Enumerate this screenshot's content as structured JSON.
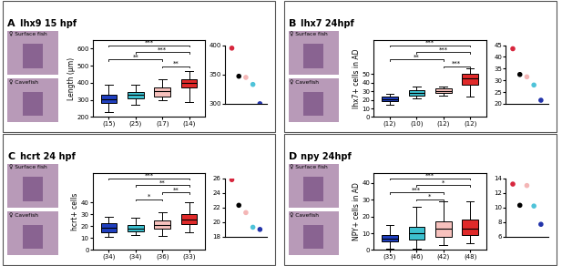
{
  "chart_data": [
    {
      "type": "box",
      "panel_label": "A",
      "title": "lhx9 15 hpf",
      "image_labels": [
        "♀ Surface fish",
        "♀ Cavefish"
      ],
      "ylabel": "Length (µm)",
      "categories": [
        "(15)",
        "(25)",
        "(17)",
        "(14)"
      ],
      "colors": [
        "#1f3fbf",
        "#3cc0cf",
        "#f7c1bd",
        "#e02a2a"
      ],
      "boxes": [
        {
          "whislo": 230,
          "q1": 280,
          "med": 305,
          "q3": 330,
          "whishi": 390
        },
        {
          "whislo": 270,
          "q1": 310,
          "med": 330,
          "q3": 345,
          "whishi": 390
        },
        {
          "whislo": 300,
          "q1": 320,
          "med": 350,
          "q3": 370,
          "whishi": 420
        },
        {
          "whislo": 290,
          "q1": 370,
          "med": 400,
          "q3": 420,
          "whishi": 470
        }
      ],
      "ylim": [
        200,
        650
      ],
      "yticks": [
        200,
        300,
        400,
        500,
        600
      ],
      "significance": [
        {
          "from": 0,
          "to": 3,
          "label": "***"
        },
        {
          "from": 0,
          "to": 2,
          "label": "**"
        },
        {
          "from": 1,
          "to": 3,
          "label": "***"
        },
        {
          "from": 2,
          "to": 3,
          "label": "**"
        }
      ],
      "inset": {
        "type": "scatter",
        "values": [
          395,
          347,
          345,
          333,
          300
        ],
        "colors": [
          "#d7263d",
          "#000000",
          "#f4b6b6",
          "#4fc3d9",
          "#2233aa"
        ],
        "ylim": [
          300,
          400
        ],
        "yticks": [
          300,
          350,
          400
        ]
      }
    },
    {
      "type": "box",
      "panel_label": "B",
      "title": "lhx7 24hpf",
      "image_labels": [
        "♀ Surface fish",
        "♀ Cavefish"
      ],
      "ylabel": "lhx7+ cells in AD",
      "categories": [
        "(12)",
        "(10)",
        "(12)",
        "(12)"
      ],
      "colors": [
        "#1f3fbf",
        "#3cc0cf",
        "#f7c1bd",
        "#e02a2a"
      ],
      "boxes": [
        {
          "whislo": 14,
          "q1": 19,
          "med": 21,
          "q3": 24,
          "whishi": 27
        },
        {
          "whislo": 22,
          "q1": 25,
          "med": 28,
          "q3": 31,
          "whishi": 36
        },
        {
          "whislo": 25,
          "q1": 28,
          "med": 30,
          "q3": 33,
          "whishi": 36
        },
        {
          "whislo": 24,
          "q1": 38,
          "med": 45,
          "q3": 50,
          "whishi": 57
        }
      ],
      "ylim": [
        0,
        90
      ],
      "yticks": [
        0,
        10,
        20,
        30,
        40,
        50
      ],
      "significance": [
        {
          "from": 0,
          "to": 3,
          "label": "***"
        },
        {
          "from": 0,
          "to": 2,
          "label": "**"
        },
        {
          "from": 1,
          "to": 3,
          "label": "***"
        },
        {
          "from": 2,
          "to": 3,
          "label": "***"
        }
      ],
      "inset": {
        "type": "scatter",
        "values": [
          43.5,
          32.5,
          31.5,
          28,
          21.5
        ],
        "colors": [
          "#d7263d",
          "#000000",
          "#f4b6b6",
          "#4fc3d9",
          "#2233aa"
        ],
        "ylim": [
          20,
          45
        ],
        "yticks": [
          20,
          25,
          30,
          35,
          40,
          45
        ]
      }
    },
    {
      "type": "box",
      "panel_label": "C",
      "title": "hcrt 24 hpf",
      "image_labels": [
        "♀ Surface fish",
        "♀ Cavefish"
      ],
      "ylabel": "hcrt+ cells",
      "categories": [
        "(34)",
        "(34)",
        "(36)",
        "(33)"
      ],
      "colors": [
        "#1f3fbf",
        "#3cc0cf",
        "#f7c1bd",
        "#e02a2a"
      ],
      "boxes": [
        {
          "whislo": 11,
          "q1": 15,
          "med": 19,
          "q3": 23,
          "whishi": 28
        },
        {
          "whislo": 13,
          "q1": 16,
          "med": 18,
          "q3": 21,
          "whishi": 27
        },
        {
          "whislo": 12,
          "q1": 18,
          "med": 21,
          "q3": 25,
          "whishi": 32
        },
        {
          "whislo": 15,
          "q1": 22,
          "med": 26,
          "q3": 30,
          "whishi": 40
        }
      ],
      "ylim": [
        0,
        65
      ],
      "yticks": [
        0,
        10,
        20,
        30,
        40
      ],
      "significance": [
        {
          "from": 0,
          "to": 3,
          "label": "***"
        },
        {
          "from": 1,
          "to": 3,
          "label": "**"
        },
        {
          "from": 1,
          "to": 2,
          "label": "*"
        },
        {
          "from": 2,
          "to": 3,
          "label": "**"
        }
      ],
      "inset": {
        "type": "scatter",
        "values": [
          25.8,
          22.3,
          21.3,
          19.3,
          19.0
        ],
        "colors": [
          "#d7263d",
          "#000000",
          "#f4b6b6",
          "#4fc3d9",
          "#2233aa"
        ],
        "ylim": [
          18,
          26
        ],
        "yticks": [
          18,
          20,
          22,
          24,
          26
        ]
      }
    },
    {
      "type": "box",
      "panel_label": "D",
      "title": "npy 24hpf",
      "image_labels": [
        "♀ Surface fish",
        "♀ Cavefish"
      ],
      "ylabel": "NPY+ cells in AD",
      "categories": [
        "(35)",
        "(46)",
        "(42)",
        "(48)"
      ],
      "colors": [
        "#1f3fbf",
        "#3cc0cf",
        "#f7c1bd",
        "#e02a2a"
      ],
      "boxes": [
        {
          "whislo": 1,
          "q1": 5,
          "med": 7,
          "q3": 9,
          "whishi": 15
        },
        {
          "whislo": 1,
          "q1": 6,
          "med": 10,
          "q3": 14,
          "whishi": 26
        },
        {
          "whislo": 3,
          "q1": 8,
          "med": 13,
          "q3": 17,
          "whishi": 29
        },
        {
          "whislo": 4,
          "q1": 9,
          "med": 13,
          "q3": 18,
          "whishi": 29
        }
      ],
      "ylim": [
        0,
        46
      ],
      "yticks": [
        0,
        10,
        20,
        30,
        40
      ],
      "significance": [
        {
          "from": 0,
          "to": 3,
          "label": "***"
        },
        {
          "from": 0,
          "to": 2,
          "label": "***"
        },
        {
          "from": 1,
          "to": 3,
          "label": "*"
        },
        {
          "from": 1,
          "to": 2,
          "label": "*"
        }
      ],
      "inset": {
        "type": "scatter",
        "values": [
          13.2,
          10.3,
          13.0,
          10.2,
          7.7
        ],
        "colors": [
          "#d7263d",
          "#000000",
          "#f4b6b6",
          "#4fc3d9",
          "#2233aa"
        ],
        "ylim": [
          6,
          14
        ],
        "yticks": [
          6,
          8,
          10,
          12,
          14
        ]
      }
    }
  ]
}
